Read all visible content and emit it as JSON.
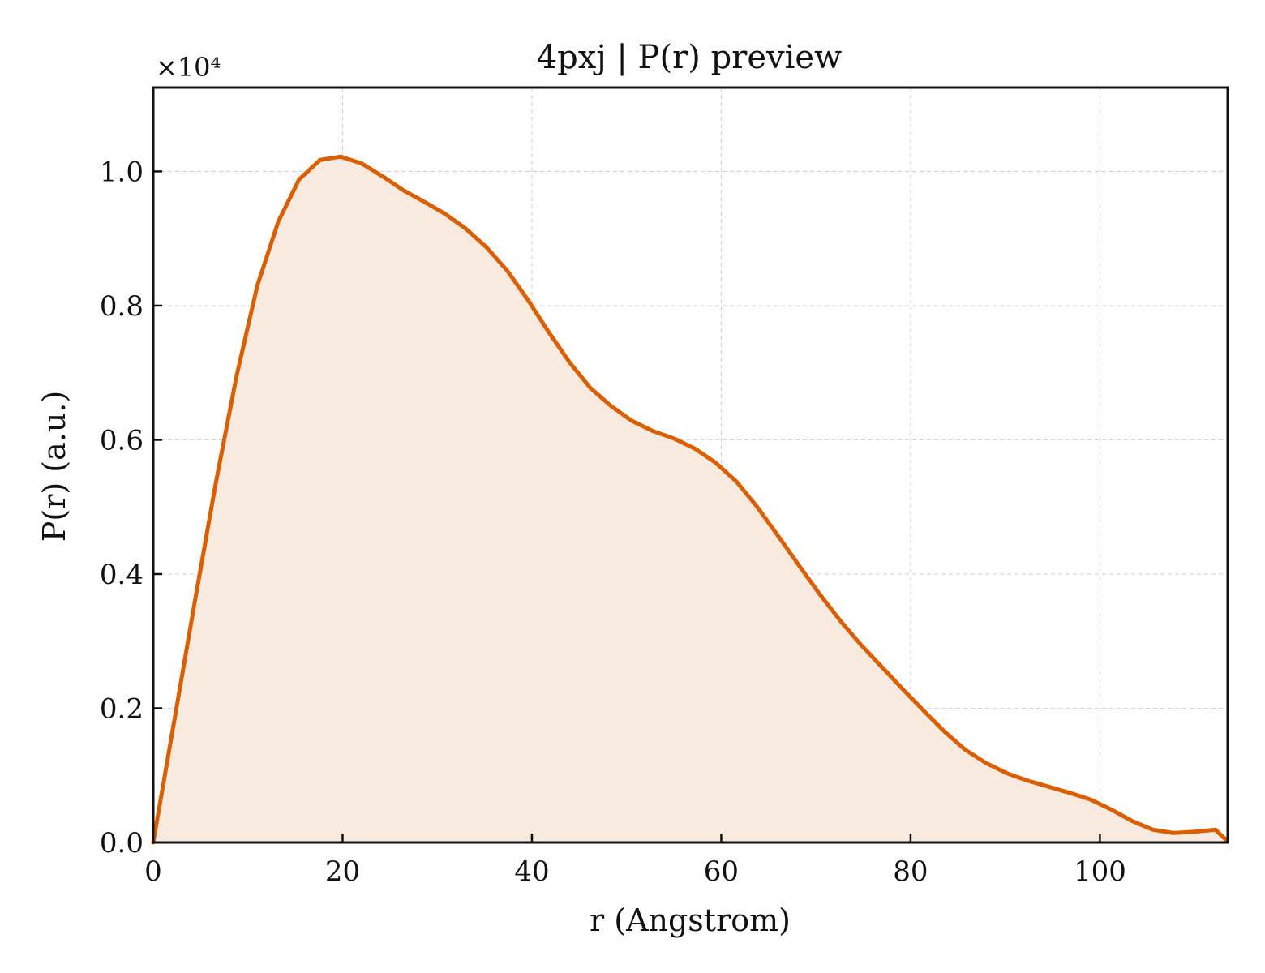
{
  "chart_data": {
    "type": "area",
    "title": "4pxj | P(r) preview",
    "xlabel": "r (Angstrom)",
    "ylabel": "P(r) (a.u.)",
    "y_multiplier": "×10⁴",
    "xlim": [
      0,
      113.5
    ],
    "ylim": [
      0,
      1.125
    ],
    "x_ticks": [
      0,
      20,
      40,
      60,
      80,
      100
    ],
    "x_tick_labels": [
      "0",
      "20",
      "40",
      "60",
      "80",
      "100"
    ],
    "y_ticks": [
      0,
      0.2,
      0.4,
      0.6,
      0.8,
      1.0
    ],
    "y_tick_labels": [
      "0.0",
      "0.2",
      "0.4",
      "0.6",
      "0.8",
      "1.0"
    ],
    "grid": true,
    "line_color": "#D95F02",
    "fill_color": "#F9EADF",
    "series": [
      {
        "x": [
          0,
          2.2,
          4.4,
          6.6,
          8.8,
          11.0,
          13.2,
          15.4,
          17.6,
          19.8,
          22.0,
          24.2,
          26.4,
          28.6,
          30.8,
          33.0,
          35.2,
          37.4,
          39.6,
          41.8,
          44.0,
          46.2,
          48.4,
          50.6,
          52.8,
          55.0,
          57.2,
          59.4,
          61.6,
          63.8,
          66.0,
          68.2,
          70.4,
          72.6,
          74.8,
          77.0,
          79.2,
          81.4,
          83.6,
          85.8,
          88.0,
          90.2,
          92.4,
          94.6,
          96.8,
          99.0,
          101.2,
          103.4,
          105.6,
          107.8,
          110.0,
          112.2,
          113.4
        ],
        "y": [
          0.0,
          0.18,
          0.36,
          0.535,
          0.695,
          0.83,
          0.925,
          0.988,
          1.017,
          1.022,
          1.012,
          0.993,
          0.972,
          0.955,
          0.937,
          0.915,
          0.887,
          0.852,
          0.808,
          0.76,
          0.715,
          0.677,
          0.65,
          0.628,
          0.613,
          0.602,
          0.587,
          0.566,
          0.538,
          0.5,
          0.457,
          0.413,
          0.37,
          0.33,
          0.294,
          0.261,
          0.228,
          0.196,
          0.165,
          0.138,
          0.118,
          0.103,
          0.092,
          0.083,
          0.074,
          0.064,
          0.049,
          0.032,
          0.019,
          0.014,
          0.016,
          0.019,
          0.003
        ]
      }
    ]
  }
}
